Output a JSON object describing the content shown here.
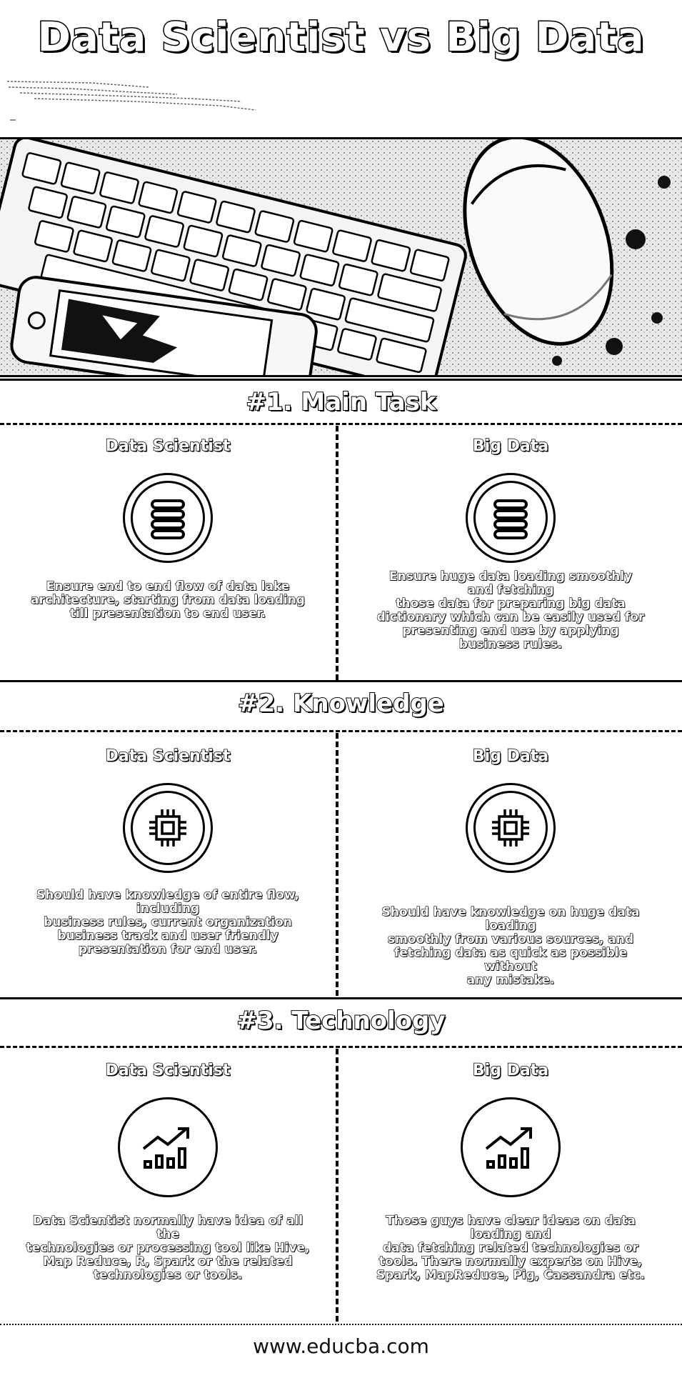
{
  "title": "Data Scientist vs Big Data",
  "sections": [
    {
      "heading": "#1. Main Task",
      "left": {
        "label": "Data Scientist",
        "icon": "database-icon",
        "text": "Ensure end to end flow of data lake\narchitecture, starting from data loading\ntill presentation to end user."
      },
      "right": {
        "label": "Big Data",
        "icon": "database-icon",
        "text": "Ensure huge data loading smoothly\nand fetching\nthose data for preparing big data\ndictionary which can be easily used for\npresenting end use by applying\nbusiness rules."
      }
    },
    {
      "heading": "#2. Knowledge",
      "left": {
        "label": "Data Scientist",
        "icon": "cpu-chip-icon",
        "text": "Should have knowledge of entire flow,\nincluding\nbusiness rules, current organization\nbusiness track and user friendly\npresentation for end user."
      },
      "right": {
        "label": "Big Data",
        "icon": "cpu-chip-icon",
        "text": "Should have knowledge on huge data\nloading\nsmoothly from various sources, and\nfetching data as quick as possible without\nany mistake."
      }
    },
    {
      "heading": "#3. Technology",
      "left": {
        "label": "Data Scientist",
        "icon": "growth-chart-icon",
        "text": "Data Scientist normally have idea of all\nthe\ntechnologies or processing tool like Hive,\nMap Reduce, R, Spark or the related\ntechnologies or tools."
      },
      "right": {
        "label": "Big Data",
        "icon": "growth-chart-icon",
        "text": "Those guys have clear ideas on data\nloading and\ndata fetching related technologies or\ntools. There normally experts on Hive,\nSpark, MapReduce, Pig, Cassandra etc."
      }
    }
  ],
  "footer": "www.educba.com"
}
